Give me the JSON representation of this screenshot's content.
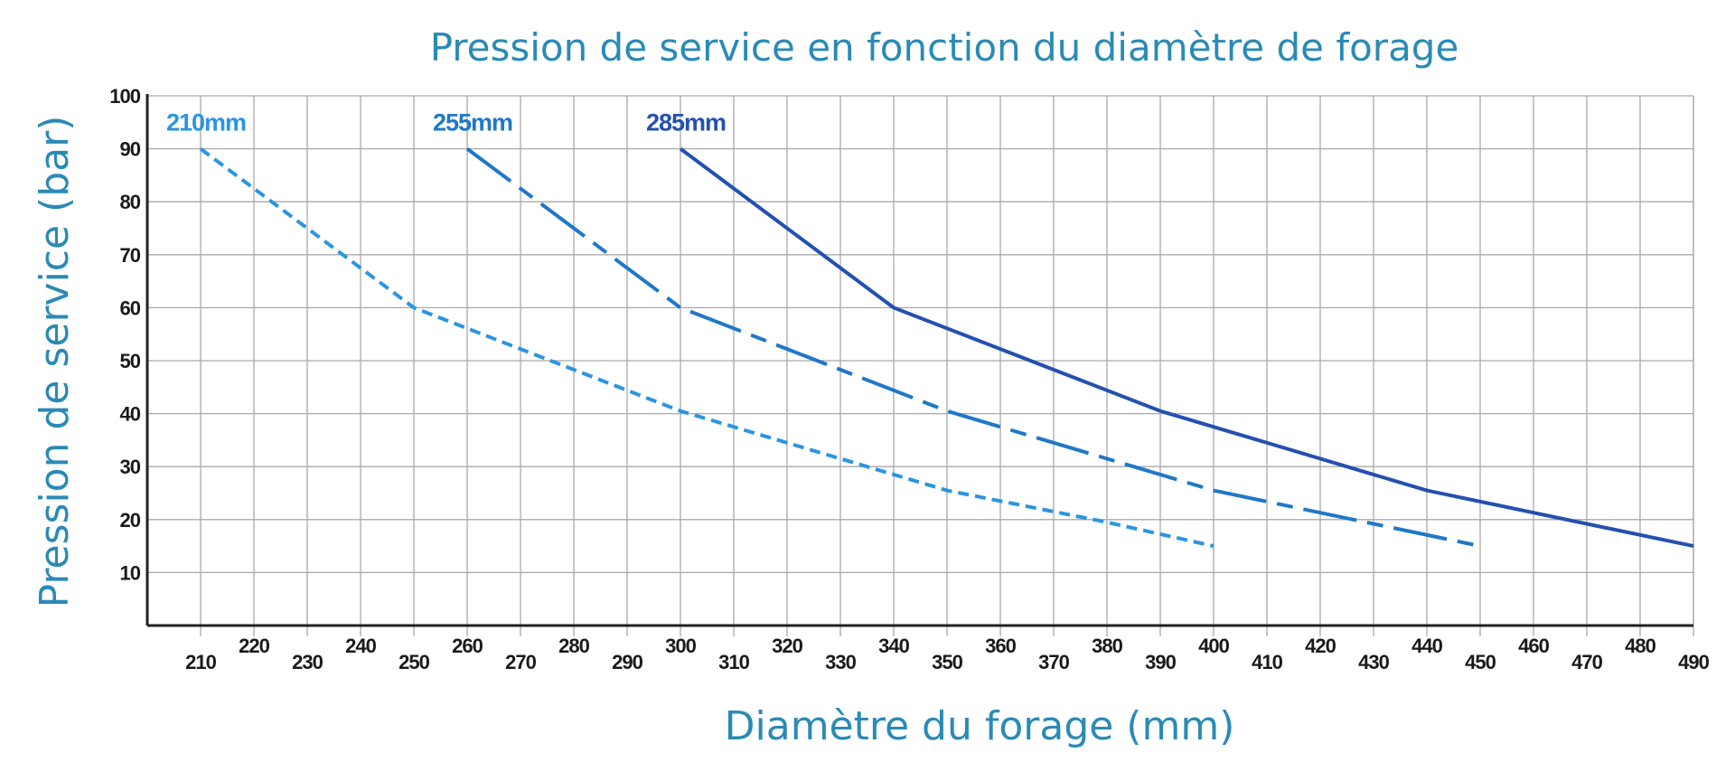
{
  "chart_data": {
    "type": "line",
    "title": "Pression de service en fonction du diamètre de forage",
    "xlabel": "Diamètre du forage (mm)",
    "ylabel": "Pression de service (bar)",
    "xlim": [
      200,
      490
    ],
    "ylim": [
      0,
      100
    ],
    "grid": true,
    "x_ticks": [
      210,
      220,
      230,
      240,
      250,
      260,
      270,
      280,
      290,
      300,
      310,
      320,
      330,
      340,
      350,
      360,
      370,
      380,
      390,
      400,
      410,
      420,
      430,
      440,
      450,
      460,
      470,
      480,
      490
    ],
    "y_ticks": [
      10,
      20,
      30,
      40,
      50,
      60,
      70,
      80,
      90,
      100
    ],
    "series": [
      {
        "name": "210mm",
        "color": "#2b95e0",
        "style": "dashed",
        "x": [
          210,
          250,
          300,
          350,
          380,
          400
        ],
        "y": [
          90,
          60,
          40.5,
          25.5,
          19.5,
          15
        ]
      },
      {
        "name": "255mm",
        "color": "#1f78c8",
        "style": "dash-dot",
        "x": [
          260,
          300,
          350,
          400,
          450
        ],
        "y": [
          90,
          60,
          40.5,
          25.5,
          15
        ]
      },
      {
        "name": "285mm",
        "color": "#2450b0",
        "style": "solid",
        "x": [
          300,
          340,
          390,
          440,
          490
        ],
        "y": [
          90,
          60,
          40.5,
          25.5,
          15
        ]
      }
    ]
  }
}
